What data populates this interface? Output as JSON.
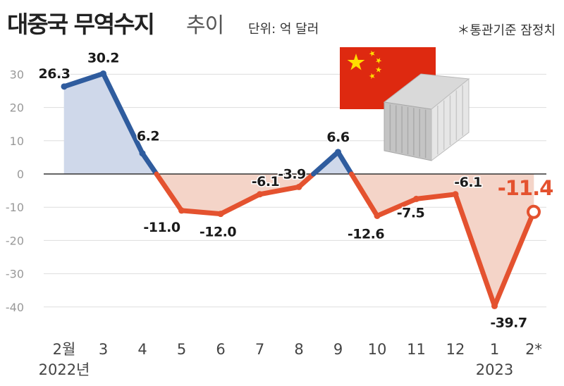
{
  "title": "대중국 무역수지",
  "subtitle": "추이",
  "unit": "단위: 억 달러",
  "note": "＊통관기준 잠정치",
  "colors": {
    "positive_line": "#2f5c9e",
    "negative_line": "#e4522f",
    "positive_fill": "#cfd8ea",
    "negative_fill": "#f4d4c8",
    "grid": "#dddddd",
    "zero_line": "#333333",
    "axis_text": "#999999"
  },
  "chart_data": {
    "type": "area",
    "categories": [
      "2월",
      "3",
      "4",
      "5",
      "6",
      "7",
      "8",
      "9",
      "10",
      "11",
      "12",
      "1",
      "2*"
    ],
    "year_labels": [
      {
        "category_index": 0,
        "label": "2022년"
      },
      {
        "category_index": 11,
        "label": "2023"
      }
    ],
    "values": [
      26.3,
      30.2,
      6.2,
      -11.0,
      -12.0,
      -6.1,
      -3.9,
      6.6,
      -12.6,
      -7.5,
      -6.1,
      -39.7,
      -11.4
    ],
    "data_labels": [
      "26.3",
      "30.2",
      "6.2",
      "-11.0",
      "-12.0",
      "-6.1",
      "-3.9",
      "6.6",
      "-12.6",
      "-7.5",
      "-6.1",
      "-39.7",
      "-11.4"
    ],
    "y_ticks": [
      30,
      20,
      10,
      0,
      -10,
      -20,
      -30,
      -40
    ],
    "ylim": [
      -50,
      35
    ],
    "highlight_last": true,
    "grid": true,
    "decoration_icons": [
      "china-flag-icon",
      "shipping-container-icon"
    ]
  }
}
